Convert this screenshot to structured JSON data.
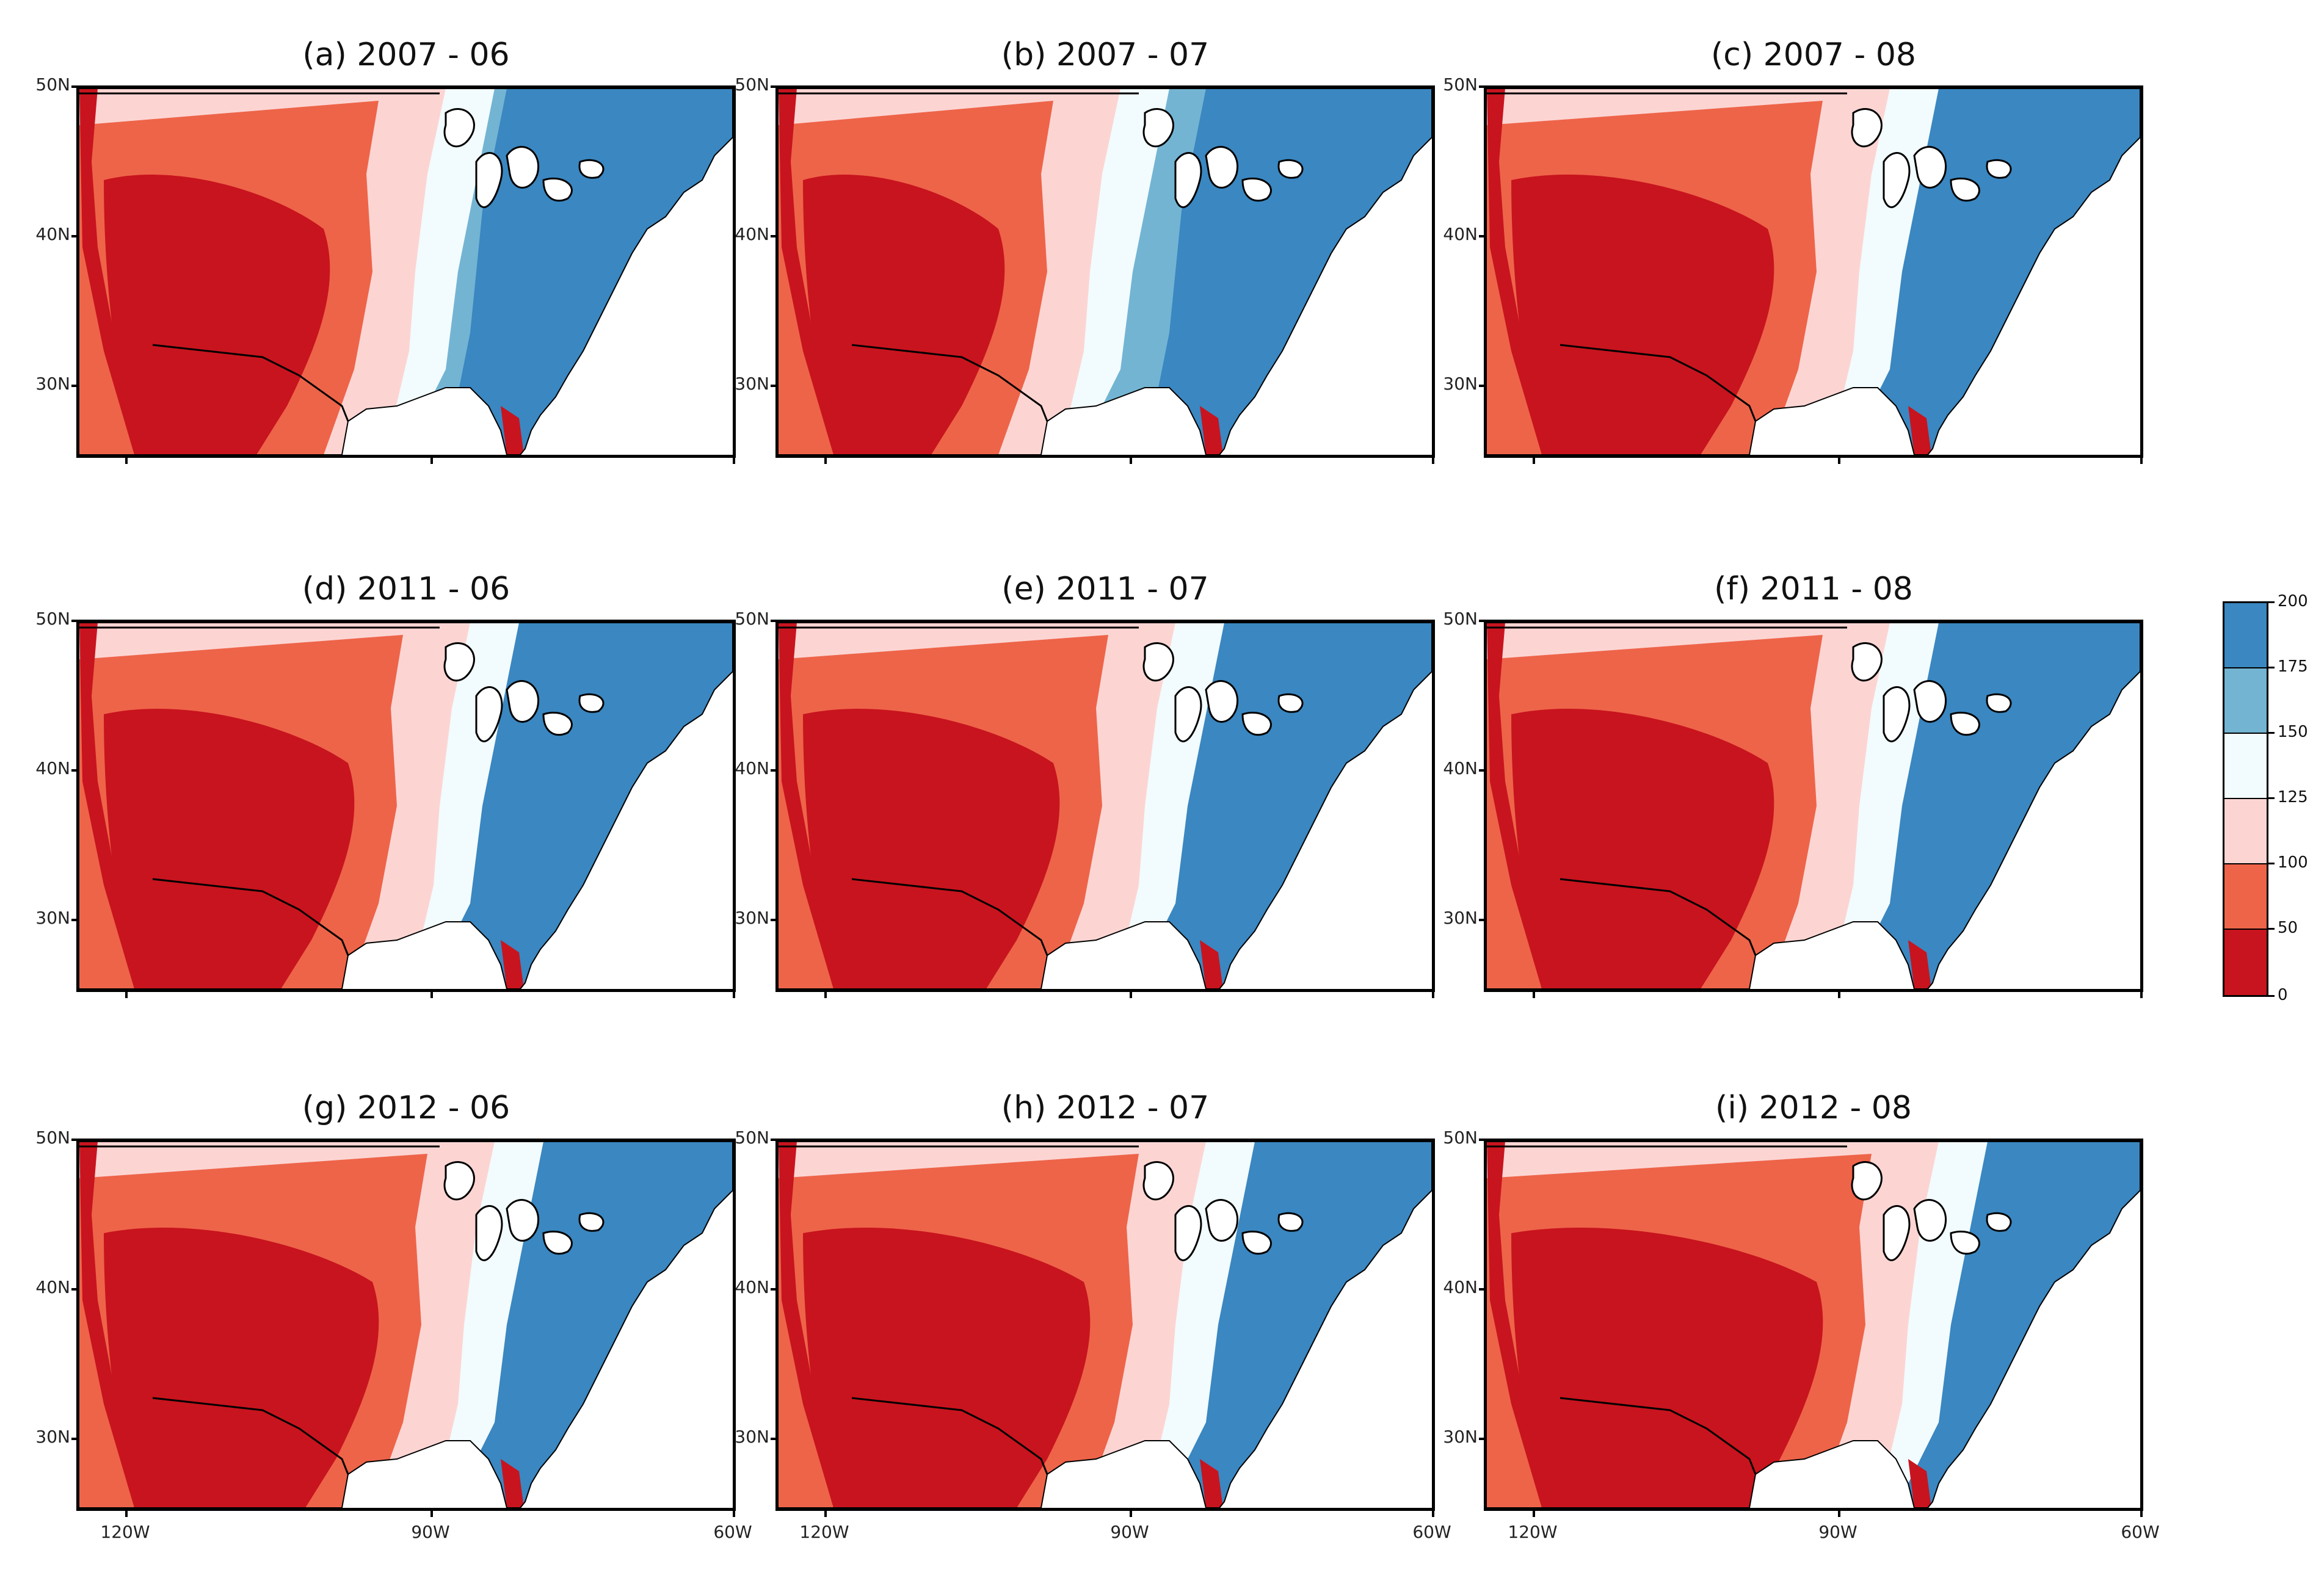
{
  "figure": {
    "panels": [
      {
        "id": "a",
        "title": "(a) 2007 - 06"
      },
      {
        "id": "b",
        "title": "(b) 2007 - 07"
      },
      {
        "id": "c",
        "title": "(c) 2007 - 08"
      },
      {
        "id": "d",
        "title": "(d) 2011 - 06"
      },
      {
        "id": "e",
        "title": "(e) 2011 - 07"
      },
      {
        "id": "f",
        "title": "(f) 2011 - 08"
      },
      {
        "id": "g",
        "title": "(g) 2012 - 06"
      },
      {
        "id": "h",
        "title": "(h) 2012 - 07"
      },
      {
        "id": "i",
        "title": "(i) 2012 - 08"
      }
    ],
    "lat_labels": [
      "50N",
      "40N",
      "30N"
    ],
    "lon_labels": [
      "120W",
      "90W",
      "60W"
    ],
    "colorbar": {
      "levels": [
        "0",
        "50",
        "100",
        "125",
        "150",
        "175",
        "200"
      ],
      "colors": [
        "#c8141e",
        "#ee6449",
        "#fcd5d3",
        "#f2fbfd",
        "#73b4d3",
        "#3a87c1"
      ]
    },
    "palette": {
      "dry": "#c8141e",
      "moderate_dry": "#ee6449",
      "light_dry": "#fcd5d3",
      "neutral": "#f2fbfd",
      "light_wet": "#73b4d3",
      "wet": "#3a87c1"
    }
  }
}
